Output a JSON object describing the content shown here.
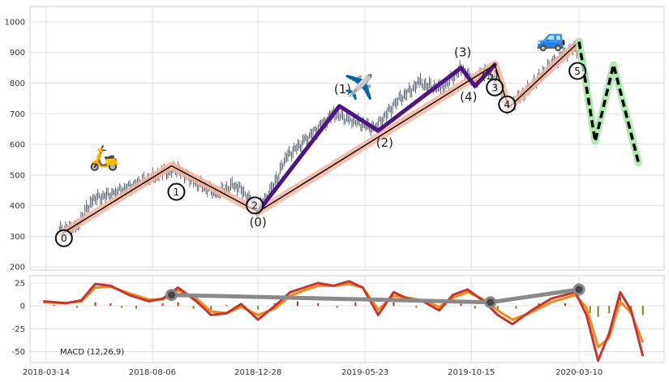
{
  "chart_data": [
    {
      "type": "candlestick",
      "x_axis": {
        "type": "date",
        "ticks": [
          "2018-03-14",
          "2018-08-06",
          "2018-12-28",
          "2019-05-23",
          "2019-10-15",
          "2020-03-10"
        ],
        "range": [
          "2018-02-20",
          "2020-07-04"
        ]
      },
      "y_axis": {
        "ticks": [
          200,
          300,
          400,
          500,
          600,
          700,
          800,
          900,
          1000
        ],
        "range": [
          190,
          1050
        ]
      },
      "grid": true,
      "price_series": {
        "points": [
          [
            "2018-04-01",
            320
          ],
          [
            "2018-04-25",
            330
          ],
          [
            "2018-05-15",
            420
          ],
          [
            "2018-06-15",
            440
          ],
          [
            "2018-07-20",
            475
          ],
          [
            "2018-08-20",
            505
          ],
          [
            "2018-09-10",
            520
          ],
          [
            "2018-10-01",
            480
          ],
          [
            "2018-11-01",
            440
          ],
          [
            "2018-11-28",
            470
          ],
          [
            "2018-12-28",
            390
          ],
          [
            "2019-01-15",
            450
          ],
          [
            "2019-02-05",
            560
          ],
          [
            "2019-03-01",
            610
          ],
          [
            "2019-04-10",
            700
          ],
          [
            "2019-05-05",
            680
          ],
          [
            "2019-06-05",
            650
          ],
          [
            "2019-07-05",
            740
          ],
          [
            "2019-08-05",
            800
          ],
          [
            "2019-09-05",
            780
          ],
          [
            "2019-10-01",
            850
          ],
          [
            "2019-10-20",
            800
          ],
          [
            "2019-11-06",
            850
          ],
          [
            "2019-11-20",
            790
          ],
          [
            "2019-12-05",
            720
          ],
          [
            "2020-01-05",
            790
          ],
          [
            "2020-02-05",
            870
          ],
          [
            "2020-03-05",
            920
          ],
          [
            "2020-03-20",
            850
          ],
          [
            "2020-04-01",
            610
          ]
        ]
      },
      "wave_main": {
        "points": [
          [
            "2018-04-05",
            310
          ],
          [
            "2018-09-01",
            530
          ],
          [
            "2018-12-28",
            380
          ],
          [
            "2019-11-16",
            860
          ],
          [
            "2019-12-05",
            720
          ],
          [
            "2020-03-10",
            935
          ]
        ],
        "labels": [
          "0",
          "1",
          "2",
          "3",
          "4",
          "5"
        ]
      },
      "wave_inner": {
        "points": [
          [
            "2018-12-28",
            380
          ],
          [
            "2019-04-18",
            725
          ],
          [
            "2019-06-10",
            645
          ],
          [
            "2019-10-01",
            850
          ],
          [
            "2019-10-20",
            790
          ],
          [
            "2019-11-16",
            860
          ]
        ],
        "labels": [
          "(0)",
          "(1)",
          "(2)",
          "(3)",
          "(4)",
          "(5)"
        ]
      },
      "forecast": {
        "points": [
          [
            "2020-03-10",
            935
          ],
          [
            "2020-04-01",
            610
          ],
          [
            "2020-04-26",
            860
          ],
          [
            "2020-05-30",
            540
          ]
        ]
      },
      "icons": [
        {
          "name": "scooter-icon",
          "glyph": "🛵",
          "x": "2018-06-01",
          "y": 530
        },
        {
          "name": "airplane-icon",
          "glyph": "✈️",
          "x": "2019-05-15",
          "y": 760
        },
        {
          "name": "car-icon",
          "glyph": "🚙",
          "x": "2020-02-01",
          "y": 920
        }
      ]
    },
    {
      "type": "macd",
      "caption": "MACD (12,26,9)",
      "y_axis": {
        "ticks": [
          25,
          0,
          -25,
          -50
        ],
        "range": [
          -62,
          33
        ]
      },
      "macd_line": [
        [
          "2018-03-10",
          5
        ],
        [
          "2018-04-10",
          3
        ],
        [
          "2018-05-01",
          6
        ],
        [
          "2018-05-20",
          24
        ],
        [
          "2018-06-10",
          22
        ],
        [
          "2018-07-05",
          12
        ],
        [
          "2018-08-01",
          5
        ],
        [
          "2018-08-20",
          8
        ],
        [
          "2018-09-10",
          20
        ],
        [
          "2018-10-05",
          5
        ],
        [
          "2018-10-25",
          -10
        ],
        [
          "2018-11-15",
          -8
        ],
        [
          "2018-12-05",
          2
        ],
        [
          "2018-12-28",
          -15
        ],
        [
          "2019-01-20",
          0
        ],
        [
          "2019-02-10",
          15
        ],
        [
          "2019-03-01",
          20
        ],
        [
          "2019-03-20",
          25
        ],
        [
          "2019-04-10",
          22
        ],
        [
          "2019-05-01",
          27
        ],
        [
          "2019-05-20",
          20
        ],
        [
          "2019-06-10",
          -10
        ],
        [
          "2019-07-01",
          15
        ],
        [
          "2019-07-20",
          8
        ],
        [
          "2019-08-10",
          5
        ],
        [
          "2019-09-01",
          -5
        ],
        [
          "2019-09-20",
          12
        ],
        [
          "2019-10-10",
          18
        ],
        [
          "2019-11-01",
          5
        ],
        [
          "2019-11-20",
          -10
        ],
        [
          "2019-12-10",
          -20
        ],
        [
          "2020-01-05",
          -5
        ],
        [
          "2020-02-01",
          8
        ],
        [
          "2020-03-05",
          15
        ],
        [
          "2020-03-20",
          -10
        ],
        [
          "2020-04-05",
          -60
        ],
        [
          "2020-04-20",
          -30
        ],
        [
          "2020-05-05",
          15
        ],
        [
          "2020-05-20",
          -5
        ],
        [
          "2020-06-05",
          -55
        ]
      ],
      "signal_line": [
        [
          "2018-03-10",
          4
        ],
        [
          "2018-04-10",
          3
        ],
        [
          "2018-05-01",
          5
        ],
        [
          "2018-05-20",
          20
        ],
        [
          "2018-06-10",
          21
        ],
        [
          "2018-07-05",
          14
        ],
        [
          "2018-08-01",
          7
        ],
        [
          "2018-08-20",
          7
        ],
        [
          "2018-09-10",
          17
        ],
        [
          "2018-10-05",
          8
        ],
        [
          "2018-10-25",
          -6
        ],
        [
          "2018-11-15",
          -8
        ],
        [
          "2018-12-05",
          -1
        ],
        [
          "2018-12-28",
          -10
        ],
        [
          "2019-01-20",
          -3
        ],
        [
          "2019-02-10",
          11
        ],
        [
          "2019-03-01",
          17
        ],
        [
          "2019-03-20",
          22
        ],
        [
          "2019-04-10",
          22
        ],
        [
          "2019-05-01",
          24
        ],
        [
          "2019-05-20",
          20
        ],
        [
          "2019-06-10",
          -4
        ],
        [
          "2019-07-01",
          11
        ],
        [
          "2019-07-20",
          9
        ],
        [
          "2019-08-10",
          6
        ],
        [
          "2019-09-01",
          -1
        ],
        [
          "2019-09-20",
          9
        ],
        [
          "2019-10-10",
          15
        ],
        [
          "2019-11-01",
          7
        ],
        [
          "2019-11-20",
          -5
        ],
        [
          "2019-12-10",
          -15
        ],
        [
          "2020-01-05",
          -7
        ],
        [
          "2020-02-01",
          4
        ],
        [
          "2020-03-05",
          12
        ],
        [
          "2020-03-20",
          -2
        ],
        [
          "2020-04-05",
          -45
        ],
        [
          "2020-04-20",
          -35
        ],
        [
          "2020-05-05",
          5
        ],
        [
          "2020-05-20",
          -8
        ],
        [
          "2020-06-05",
          -40
        ]
      ],
      "trend_line": [
        [
          "2018-09-01",
          12
        ],
        [
          "2019-11-10",
          4
        ],
        [
          "2020-03-10",
          18
        ]
      ],
      "histogram": [
        [
          "2018-03-25",
          1
        ],
        [
          "2018-04-25",
          -2
        ],
        [
          "2018-05-20",
          4
        ],
        [
          "2018-06-10",
          3
        ],
        [
          "2018-06-25",
          -2
        ],
        [
          "2018-07-15",
          -3
        ],
        [
          "2018-08-20",
          3
        ],
        [
          "2018-09-10",
          4
        ],
        [
          "2018-10-01",
          -3
        ],
        [
          "2018-10-25",
          -4
        ],
        [
          "2018-11-15",
          1
        ],
        [
          "2018-12-05",
          3
        ],
        [
          "2018-12-28",
          -4
        ],
        [
          "2019-01-20",
          3
        ],
        [
          "2019-02-20",
          5
        ],
        [
          "2019-03-20",
          3
        ],
        [
          "2019-04-15",
          -2
        ],
        [
          "2019-05-10",
          4
        ],
        [
          "2019-06-05",
          -5
        ],
        [
          "2019-07-01",
          4
        ],
        [
          "2019-08-01",
          -2
        ],
        [
          "2019-09-01",
          -4
        ],
        [
          "2019-10-01",
          4
        ],
        [
          "2019-10-20",
          -3
        ],
        [
          "2019-11-20",
          -5
        ],
        [
          "2019-12-15",
          -3
        ],
        [
          "2020-01-15",
          3
        ],
        [
          "2020-02-20",
          3
        ],
        [
          "2020-03-25",
          -8
        ],
        [
          "2020-04-05",
          -12
        ],
        [
          "2020-04-20",
          -8
        ],
        [
          "2020-05-05",
          10
        ],
        [
          "2020-05-20",
          -5
        ],
        [
          "2020-06-05",
          -10
        ]
      ]
    }
  ]
}
